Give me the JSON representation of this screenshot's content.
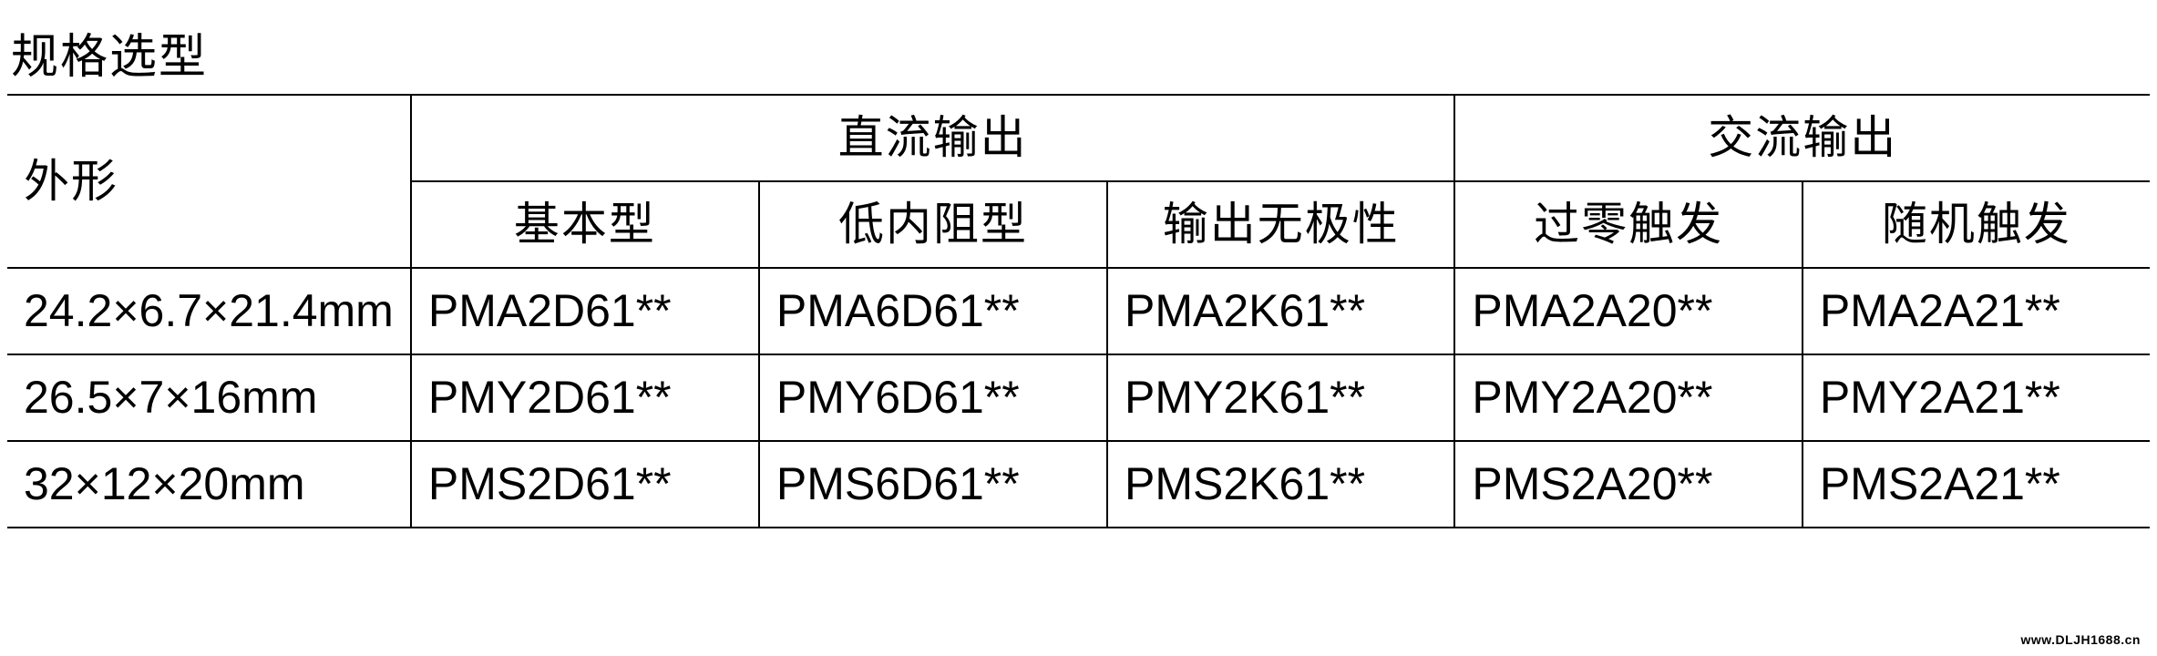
{
  "title": "规格选型",
  "table": {
    "row_label_header": "外形",
    "group_headers": [
      {
        "label": "直流输出",
        "span": 3
      },
      {
        "label": "交流输出",
        "span": 2
      }
    ],
    "sub_headers": [
      "基本型",
      "低内阻型",
      "输出无极性",
      "过零触发",
      "随机触发"
    ],
    "rows": [
      {
        "label": "24.2×6.7×21.4mm",
        "cells": [
          "PMA2D61**",
          "PMA6D61**",
          "PMA2K61**",
          "PMA2A20**",
          "PMA2A21**"
        ]
      },
      {
        "label": "26.5×7×16mm",
        "cells": [
          "PMY2D61**",
          "PMY6D61**",
          "PMY2K61**",
          "PMY2A20**",
          "PMY2A21**"
        ]
      },
      {
        "label": "32×12×20mm",
        "cells": [
          "PMS2D61**",
          "PMS6D61**",
          "PMS2K61**",
          "PMS2A20**",
          "PMS2A21**"
        ]
      }
    ]
  },
  "watermark": "www.DLJH1688.cn",
  "styling": {
    "background_color": "#ffffff",
    "text_color": "#000000",
    "border_color": "#000000",
    "border_width": 2,
    "title_fontsize": 52,
    "cell_fontsize": 50,
    "font_family_cjk": "SimSun",
    "font_family_latin": "Arial",
    "column_widths": {
      "shape": 330,
      "data": 407
    }
  }
}
